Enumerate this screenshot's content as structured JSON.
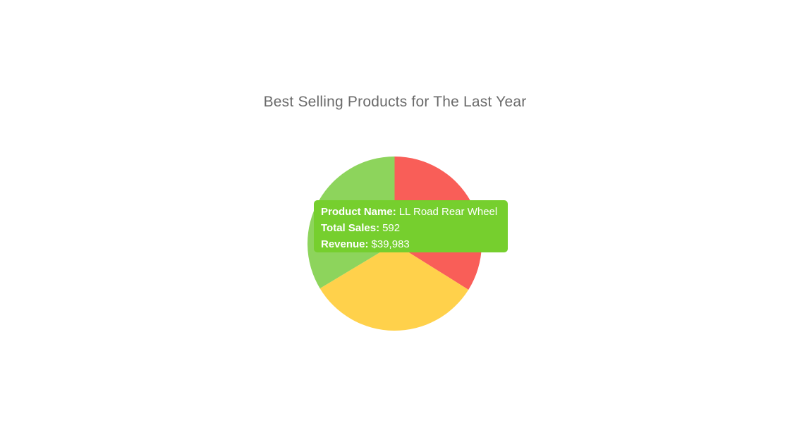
{
  "page": {
    "background": "#ffffff"
  },
  "header": {
    "title": "Best Selling Products for The Last Year",
    "title_color": "#6a6a6a"
  },
  "chart_data": {
    "type": "pie",
    "title": "Best Selling Products for The Last Year",
    "legend": "none",
    "slices": [
      {
        "color": "#f95e58",
        "start_deg": 0,
        "end_deg": 122,
        "percent": 33.9
      },
      {
        "color": "#ffd14b",
        "start_deg": 122,
        "end_deg": 239,
        "percent": 32.5
      },
      {
        "color": "#8dd45c",
        "start_deg": 239,
        "end_deg": 360,
        "percent": 33.6,
        "label": "LL Road Rear Wheel",
        "total_sales": 592,
        "revenue": "$39,983",
        "hovered": true
      }
    ],
    "tooltip": {
      "background": "#76cf2e",
      "text_color": "#ffffff",
      "lines": [
        {
          "label": "Product Name:",
          "value": "LL Road Rear Wheel"
        },
        {
          "label": "Total Sales:",
          "value": "592"
        },
        {
          "label": "Revenue:",
          "value": "$39,983"
        }
      ]
    }
  }
}
